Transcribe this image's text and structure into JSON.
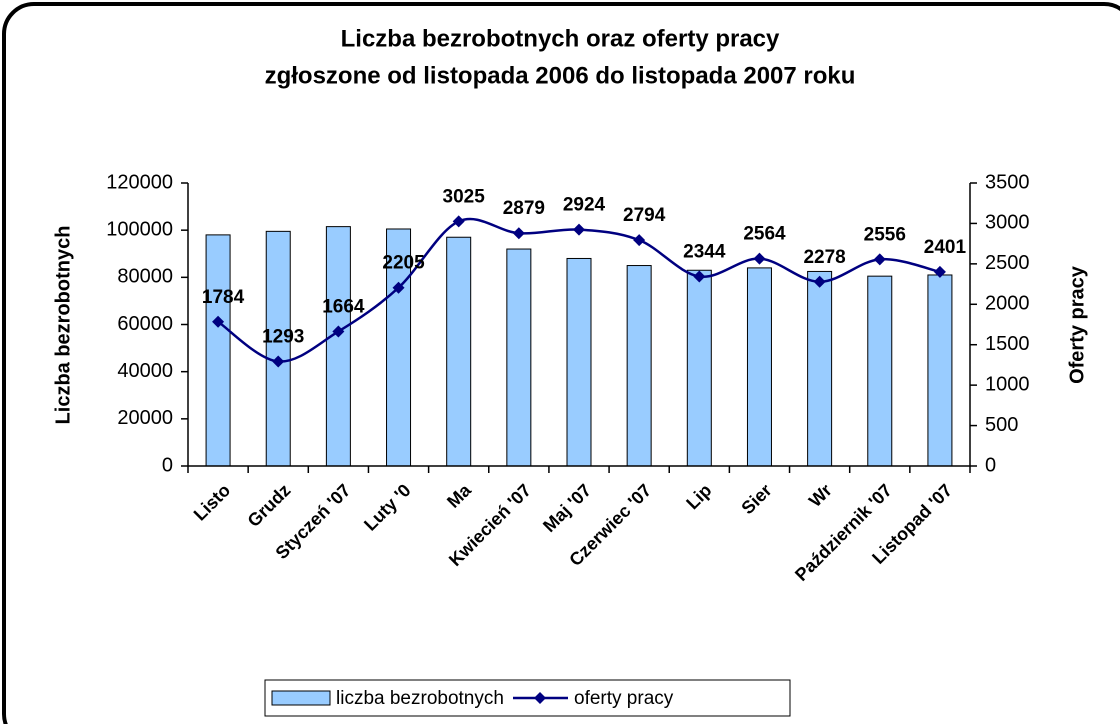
{
  "chart_data": {
    "type": "bar_line",
    "title": [
      "Liczba bezrobotnych oraz oferty pracy",
      "zgłoszone od listopada 2006 do listopada 2007 roku"
    ],
    "ylabel": "Liczba bezrobotnych",
    "y2label": "Oferty pracy",
    "categories": [
      "Listo",
      "Grudz",
      "Styczeń '07",
      "Luty '0",
      "Ma",
      "Kwiecień '07",
      "Maj '07",
      "Czerwiec '07",
      "Lip",
      "Sier",
      "Wr",
      "Październik '07",
      "Listopad '07"
    ],
    "series": [
      {
        "name": "liczba bezrobotnych",
        "color": "#99ccff",
        "values": [
          98000,
          99500,
          101500,
          100500,
          97000,
          92000,
          88000,
          85000,
          83000,
          84000,
          82500,
          80500,
          81000
        ]
      },
      {
        "name": "oferty pracy",
        "color": "#000080",
        "axis": "y2",
        "values": [
          1784,
          1293,
          1664,
          2205,
          3025,
          2879,
          2924,
          2794,
          2344,
          2564,
          2278,
          2556,
          2401
        ]
      }
    ],
    "ylim": [
      0,
      120000
    ],
    "yticks": [
      0,
      20000,
      40000,
      60000,
      80000,
      100000,
      120000
    ],
    "y2lim": [
      0,
      3500
    ],
    "y2ticks": [
      0,
      500,
      1000,
      1500,
      2000,
      2500,
      3000,
      3500
    ],
    "legend": "bottom"
  }
}
